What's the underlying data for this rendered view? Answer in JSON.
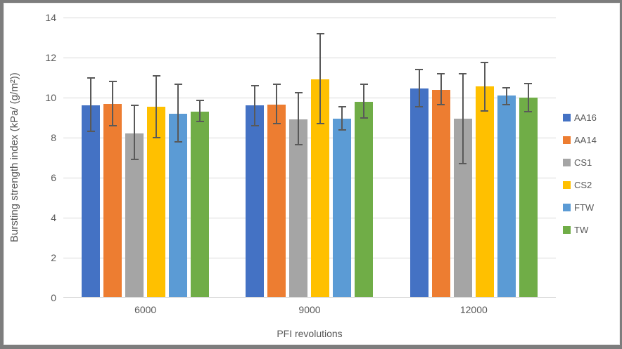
{
  "colors": {
    "frame_border": "#7d7d7d",
    "chart_border": "#ececec",
    "gridline": "#d9d9d9",
    "axis_text": "#595959",
    "error_bar": "#595959"
  },
  "chart_data": {
    "type": "bar",
    "title": "",
    "xlabel": "PFI revolutions",
    "ylabel": "Bursting strength index (kPa/ (g/m²))",
    "categories": [
      "6000",
      "9000",
      "12000"
    ],
    "ylim": [
      0,
      14
    ],
    "yticks": [
      0,
      2,
      4,
      6,
      8,
      10,
      12,
      14
    ],
    "grid": true,
    "legend_position": "right",
    "series": [
      {
        "name": "AA16",
        "color": "#4472C4",
        "values": [
          9.6,
          9.6,
          10.45
        ],
        "error_lo": [
          8.3,
          8.6,
          9.55
        ],
        "error_hi": [
          11.0,
          10.6,
          11.4
        ]
      },
      {
        "name": "AA14",
        "color": "#ED7D31",
        "values": [
          9.7,
          9.65,
          10.4
        ],
        "error_lo": [
          8.6,
          8.7,
          9.65
        ],
        "error_hi": [
          10.8,
          10.65,
          11.2
        ]
      },
      {
        "name": "CS1",
        "color": "#A5A5A5",
        "values": [
          8.2,
          8.9,
          8.95
        ],
        "error_lo": [
          6.9,
          7.65,
          6.7
        ],
        "error_hi": [
          9.6,
          10.25,
          11.2
        ]
      },
      {
        "name": "CS2",
        "color": "#FFC000",
        "values": [
          9.55,
          10.9,
          10.55
        ],
        "error_lo": [
          8.0,
          8.7,
          9.35
        ],
        "error_hi": [
          11.1,
          13.2,
          11.75
        ]
      },
      {
        "name": "FTW",
        "color": "#5B9BD5",
        "values": [
          9.2,
          8.95,
          10.1
        ],
        "error_lo": [
          7.8,
          8.4,
          9.65
        ],
        "error_hi": [
          10.65,
          9.55,
          10.5
        ]
      },
      {
        "name": "TW",
        "color": "#70AD47",
        "values": [
          9.3,
          9.8,
          10.0
        ],
        "error_lo": [
          8.8,
          9.0,
          9.3
        ],
        "error_hi": [
          9.85,
          10.65,
          10.7
        ]
      }
    ]
  }
}
